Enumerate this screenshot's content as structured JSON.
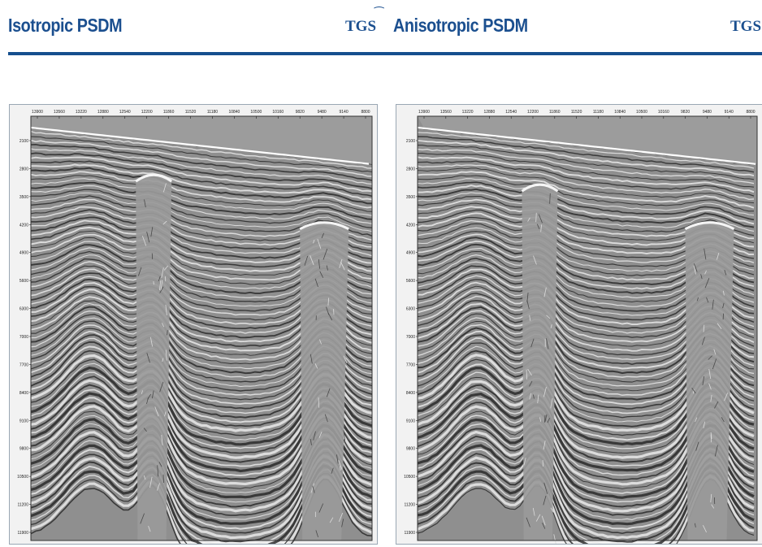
{
  "left": {
    "title": "Isotropic PSDM",
    "logo": "TGS",
    "depth_ticks": [
      "2100",
      "2800",
      "3500",
      "4200",
      "4900",
      "5600",
      "6300",
      "7000",
      "7700",
      "8400",
      "9100",
      "9800",
      "10500",
      "11200",
      "11900"
    ],
    "top_ticks": [
      "13900",
      "13560",
      "13220",
      "12880",
      "12540",
      "12200",
      "11860",
      "11520",
      "11180",
      "10840",
      "10500",
      "10160",
      "9820",
      "9480",
      "9140",
      "8800"
    ]
  },
  "right": {
    "title": "Anisotropic PSDM",
    "logo": "TGS",
    "depth_ticks": [
      "2100",
      "2800",
      "3500",
      "4200",
      "4900",
      "5600",
      "6300",
      "7000",
      "7700",
      "8400",
      "9100",
      "9800",
      "10500",
      "11200",
      "11900"
    ],
    "top_ticks": [
      "13900",
      "13560",
      "13220",
      "12880",
      "12540",
      "12200",
      "11860",
      "11520",
      "11180",
      "10840",
      "10500",
      "10160",
      "9820",
      "9480",
      "9140",
      "8800"
    ]
  },
  "colors": {
    "brand_blue": "#1b4f8f"
  }
}
